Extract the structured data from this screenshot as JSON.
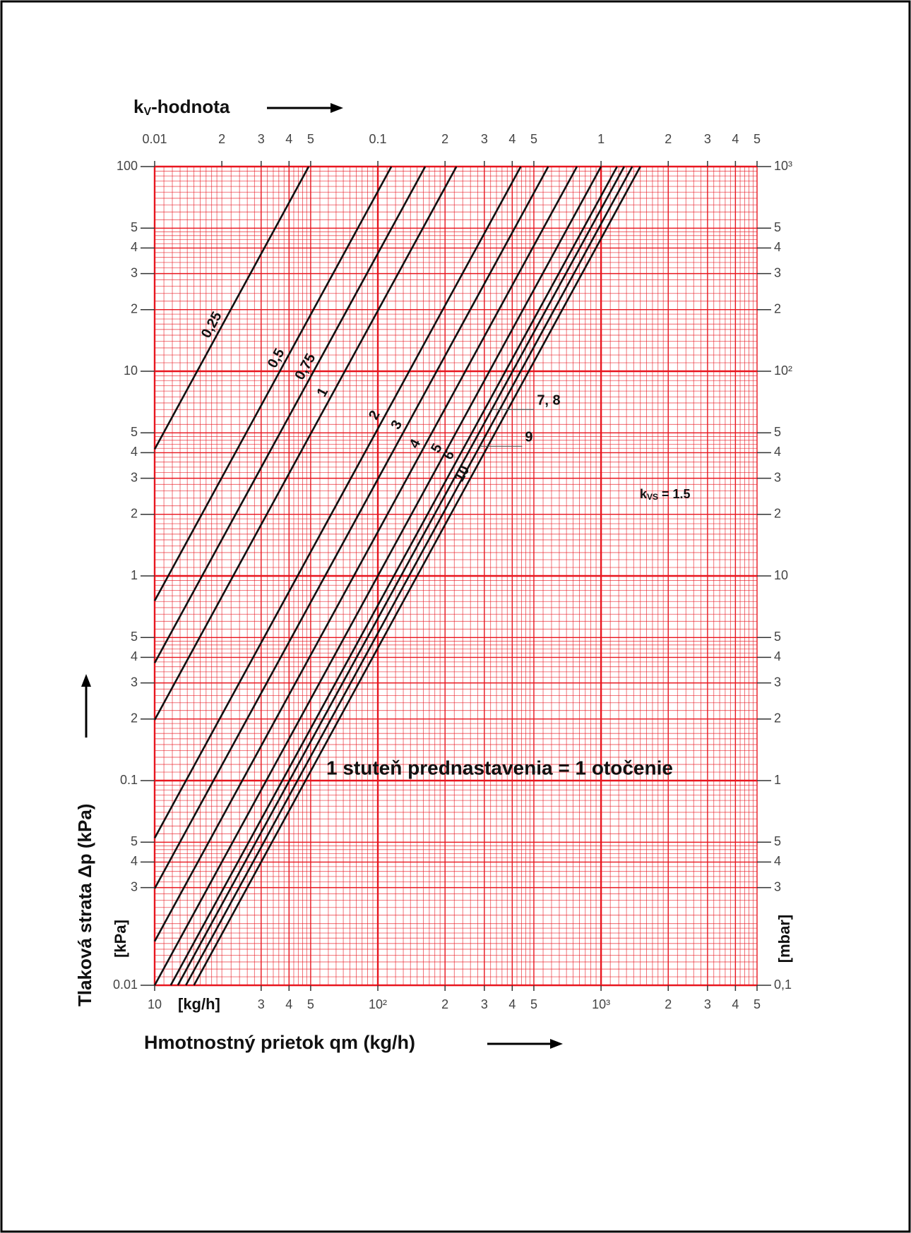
{
  "chart_data": {
    "type": "line",
    "x2label": [
      "k",
      "V",
      "-hodnota"
    ],
    "xlabel": "Hmotnostný prietok qm (kg/h)",
    "ylabel": "Tlaková strata Δp (kPa)",
    "x_unit_label": "[kg/h]",
    "y_unit_label": "[kPa]",
    "y2_unit_label": "[mbar]",
    "annotation": "1 stuteň prednastavenia = 1 otočenie",
    "kvs_label": [
      "k",
      "VS",
      " = 1.5"
    ],
    "xscale": "log",
    "yscale": "log",
    "xlim": [
      10,
      5000
    ],
    "ylim": [
      0.01,
      100
    ],
    "x2lim": [
      0.01,
      5
    ],
    "y2lim": [
      0.1,
      1000
    ],
    "grid": true,
    "grid_color": "#e8161f",
    "xticks": [
      10,
      {
        "value": 30,
        "label": "3"
      },
      {
        "value": 40,
        "label": "4"
      },
      {
        "value": 50,
        "label": "5"
      },
      {
        "value": 100,
        "label": "10²"
      },
      {
        "value": 200,
        "label": "2"
      },
      {
        "value": 300,
        "label": "3"
      },
      {
        "value": 400,
        "label": "4"
      },
      {
        "value": 500,
        "label": "5"
      },
      {
        "value": 1000,
        "label": "10³"
      },
      {
        "value": 2000,
        "label": "2"
      },
      {
        "value": 3000,
        "label": "3"
      },
      {
        "value": 4000,
        "label": "4"
      },
      {
        "value": 5000,
        "label": "5"
      }
    ],
    "x2ticks": [
      0.01,
      {
        "value": 0.02,
        "label": "2"
      },
      {
        "value": 0.03,
        "label": "3"
      },
      {
        "value": 0.04,
        "label": "4"
      },
      {
        "value": 0.05,
        "label": "5"
      },
      0.1,
      {
        "value": 0.2,
        "label": "2"
      },
      {
        "value": 0.3,
        "label": "3"
      },
      {
        "value": 0.4,
        "label": "4"
      },
      {
        "value": 0.5,
        "label": "5"
      },
      1,
      {
        "value": 2,
        "label": "2"
      },
      {
        "value": 3,
        "label": "3"
      },
      {
        "value": 4,
        "label": "4"
      },
      {
        "value": 5,
        "label": "5"
      }
    ],
    "yticks": [
      0.01,
      {
        "value": 0.03,
        "label": "3"
      },
      {
        "value": 0.04,
        "label": "4"
      },
      {
        "value": 0.05,
        "label": "5"
      },
      0.1,
      {
        "value": 0.2,
        "label": "2"
      },
      {
        "value": 0.3,
        "label": "3"
      },
      {
        "value": 0.4,
        "label": "4"
      },
      {
        "value": 0.5,
        "label": "5"
      },
      1,
      {
        "value": 2,
        "label": "2"
      },
      {
        "value": 3,
        "label": "3"
      },
      {
        "value": 4,
        "label": "4"
      },
      {
        "value": 5,
        "label": "5"
      },
      10,
      {
        "value": 20,
        "label": "2"
      },
      {
        "value": 30,
        "label": "3"
      },
      {
        "value": 40,
        "label": "4"
      },
      {
        "value": 50,
        "label": "5"
      },
      100
    ],
    "y2ticks": [
      {
        "value": 0.1,
        "label": "0,1"
      },
      {
        "value": 0.3,
        "label": "3"
      },
      {
        "value": 0.4,
        "label": "4"
      },
      {
        "value": 0.5,
        "label": "5"
      },
      1,
      {
        "value": 2,
        "label": "2"
      },
      {
        "value": 3,
        "label": "3"
      },
      {
        "value": 4,
        "label": "4"
      },
      {
        "value": 5,
        "label": "5"
      },
      10,
      {
        "value": 20,
        "label": "2"
      },
      {
        "value": 30,
        "label": "3"
      },
      {
        "value": 40,
        "label": "4"
      },
      {
        "value": 50,
        "label": "5"
      },
      {
        "value": 100,
        "label": "10²"
      },
      {
        "value": 200,
        "label": "2"
      },
      {
        "value": 300,
        "label": "3"
      },
      {
        "value": 400,
        "label": "4"
      },
      {
        "value": 500,
        "label": "5"
      },
      {
        "value": 1000,
        "label": "10³"
      }
    ],
    "series": [
      {
        "name": "0,25",
        "color": "#111111",
        "x": [
          10,
          49
        ],
        "values": [
          4.16,
          100
        ]
      },
      {
        "name": "0,5",
        "color": "#111111",
        "x": [
          10,
          115
        ],
        "values": [
          0.756,
          100
        ]
      },
      {
        "name": "0,75",
        "color": "#111111",
        "x": [
          10,
          163
        ],
        "values": [
          0.376,
          100
        ]
      },
      {
        "name": "1",
        "color": "#111111",
        "x": [
          10,
          225
        ],
        "values": [
          0.198,
          100
        ]
      },
      {
        "name": "2",
        "color": "#111111",
        "x": [
          10,
          437
        ],
        "values": [
          0.0524,
          100
        ]
      },
      {
        "name": "3",
        "color": "#111111",
        "x": [
          10,
          580
        ],
        "values": [
          0.0297,
          100
        ]
      },
      {
        "name": "4",
        "color": "#111111",
        "x": [
          10,
          780
        ],
        "values": [
          0.0164,
          100
        ]
      },
      {
        "name": "5",
        "color": "#111111",
        "x": [
          10,
          1000
        ],
        "values": [
          0.01,
          100
        ]
      },
      {
        "name": "6",
        "color": "#111111",
        "x": [
          11.8,
          1180
        ],
        "values": [
          0.01,
          100
        ]
      },
      {
        "name": "7, 8",
        "color": "#111111",
        "x": [
          12.7,
          1270
        ],
        "values": [
          0.01,
          100
        ]
      },
      {
        "name": "9",
        "color": "#111111",
        "x": [
          13.8,
          1380
        ],
        "values": [
          0.01,
          100
        ]
      },
      {
        "name": "10",
        "color": "#111111",
        "x": [
          15,
          1500
        ],
        "values": [
          0.01,
          100
        ]
      }
    ]
  }
}
